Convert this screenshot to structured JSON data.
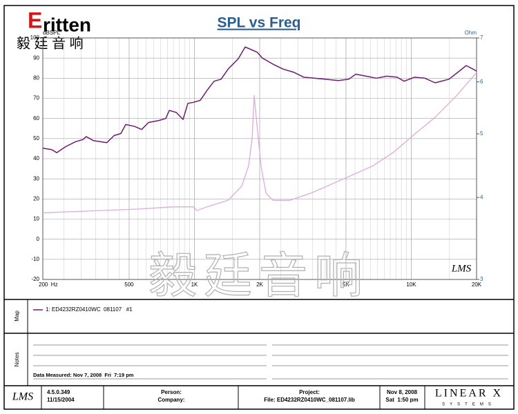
{
  "chart_data": {
    "type": "line",
    "title": "SPL vs Freq",
    "y_label": "dBSPL",
    "y2_label": "Ohm",
    "xlim": [
      200,
      20000
    ],
    "xlog": true,
    "xticks": [
      {
        "value": 200,
        "label": "200  Hz"
      },
      500,
      {
        "value": 1000,
        "label": "1K"
      },
      {
        "value": 2000,
        "label": "2K"
      },
      {
        "value": 5000,
        "label": "5K"
      },
      {
        "value": 10000,
        "label": "10K"
      },
      {
        "value": 20000,
        "label": "20K"
      }
    ],
    "ylim": [
      -20,
      100
    ],
    "yticks": [
      -20,
      -10,
      0,
      10,
      20,
      30,
      40,
      50,
      60,
      70,
      80,
      90,
      100
    ],
    "y2lim": [
      3,
      7
    ],
    "y2log": true,
    "y2ticks": [
      3,
      4,
      5,
      6,
      7
    ],
    "grid": true,
    "series": [
      {
        "name": "1: ED4232RZ0410WC  081107   #1",
        "color": "#6e1a6e",
        "x": [
          200,
          220,
          232,
          255,
          284,
          306,
          317,
          342,
          367,
          395,
          426,
          458,
          482,
          531,
          571,
          614,
          686,
          738,
          766,
          824,
          886,
          933,
          989,
          1064,
          1145,
          1233,
          1327,
          1429,
          1594,
          1715,
          1846,
          1942,
          2060,
          2300,
          2566,
          2864,
          3198,
          3570,
          3984,
          4614,
          5152,
          5546,
          6186,
          6906,
          7710,
          8608,
          9266,
          10338,
          11540,
          12880,
          14920,
          16640,
          17920,
          19280,
          20000
        ],
        "values": [
          45.2,
          44.5,
          43,
          46,
          48.5,
          49.5,
          51,
          49,
          48.5,
          48,
          51.5,
          52.5,
          57,
          56,
          54.5,
          58,
          59,
          60,
          64,
          63,
          59.5,
          67.5,
          68,
          69,
          74,
          78.5,
          79.5,
          84.5,
          89.7,
          95.5,
          94,
          93,
          90,
          87,
          84.5,
          83,
          80.5,
          80,
          79.5,
          78.8,
          79.5,
          82,
          81,
          80,
          81,
          80.5,
          78.5,
          80.5,
          80,
          77.7,
          79.5,
          83.5,
          86.3,
          84.5,
          83.5
        ]
      },
      {
        "color": "#dcaadc",
        "axis": "y2",
        "x": [
          200,
          550,
          794,
          989,
          1026,
          1145,
          1429,
          1652,
          1779,
          1846,
          1886,
          1942,
          2028,
          2138,
          2300,
          2760,
          3440,
          4966,
          6658,
          8300,
          10338,
          12880,
          16040,
          20000
        ],
        "values": [
          3.79,
          3.84,
          3.87,
          3.87,
          3.82,
          3.87,
          3.96,
          4.16,
          4.47,
          4.93,
          5.72,
          5.17,
          4.47,
          4.06,
          3.96,
          3.96,
          4.06,
          4.28,
          4.47,
          4.69,
          4.99,
          5.3,
          5.7,
          6.2
        ]
      }
    ]
  },
  "page": {
    "logo_e": "E",
    "logo": "ritten",
    "logo_cn": "毅 廷 音 响",
    "watermark": "毅廷音响",
    "chart_logo": "LMS",
    "map_label": "Map",
    "notes_label": "Notes",
    "data_measured": "Data Measured: Nov 7, 2008  Fri  7:19 pm",
    "footer": {
      "logo": "LMS",
      "version": "4.5.0.349",
      "version_date": "11/15/2004",
      "person": "Person:",
      "company": "Company:",
      "project": "Project:",
      "file": "File: ED4232RZ0410WC_081107.lib",
      "date": "Nov 8, 2008",
      "time": "Sat  1:50 pm",
      "brand": "LINEAR X",
      "brand_sub": "SYSTEMS"
    }
  }
}
